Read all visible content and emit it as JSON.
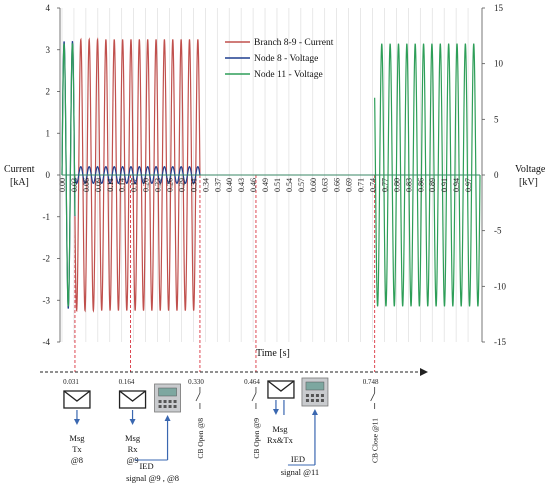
{
  "chart_data": {
    "type": "line",
    "xlabel": "Time [s]",
    "ylabel_left": [
      "Current",
      "[kA]"
    ],
    "ylabel_right": [
      "Voltage",
      "[kV]"
    ],
    "ylim_left": [
      -4,
      4
    ],
    "ylim_right": [
      -15,
      15
    ],
    "yticks_left": [
      "4",
      "3",
      "2",
      "1",
      "0",
      "-1",
      "-2",
      "-3",
      "-4"
    ],
    "yticks_right": [
      "15",
      "10",
      "5",
      "0",
      "-5",
      "-10",
      "-15"
    ],
    "xlim": [
      0,
      1
    ],
    "xticks": [
      "0.00",
      "0.03",
      "0.06",
      "0.09",
      "0.11",
      "0.14",
      "0.17",
      "0.20",
      "0.23",
      "0.26",
      "0.29",
      "0.31",
      "0.34",
      "0.37",
      "0.40",
      "0.43",
      "0.46",
      "0.49",
      "0.51",
      "0.54",
      "0.57",
      "0.60",
      "0.63",
      "0.66",
      "0.69",
      "0.71",
      "0.74",
      "0.77",
      "0.80",
      "0.83",
      "0.86",
      "0.89",
      "0.91",
      "0.94",
      "0.97"
    ],
    "grid": true,
    "legend_position": "top-center",
    "series": [
      {
        "name": "Branch 8-9 - Current",
        "color": "#c0504d",
        "axis": "left",
        "frequency_hz": 50,
        "segments": [
          {
            "t_start": 0.031,
            "t_end": 0.33,
            "amplitude": 3.25
          }
        ]
      },
      {
        "name": "Node 8 - Voltage",
        "color": "#1f3f8f",
        "axis": "left",
        "frequency_hz": 50,
        "segments": [
          {
            "t_start": 0.0,
            "t_end": 0.031,
            "amplitude": 3.2
          },
          {
            "t_start": 0.031,
            "t_end": 0.33,
            "amplitude": 0.2
          }
        ]
      },
      {
        "name": "Node 11 - Voltage",
        "color": "#2e9e58",
        "axis": "right",
        "frequency_hz": 50,
        "segments": [
          {
            "t_start": 0.0,
            "t_end": 0.031,
            "amplitude": 11.8
          },
          {
            "t_start": 0.748,
            "t_end": 1.0,
            "amplitude": 11.8
          }
        ]
      }
    ],
    "event_lines": [
      0.031,
      0.164,
      0.33,
      0.464,
      0.748
    ]
  },
  "timeline": {
    "events": [
      {
        "time": "0.031",
        "t": 0.031,
        "icon": "envelope-icon",
        "label": [
          "Msg",
          "Tx",
          "@8"
        ]
      },
      {
        "time": "0.164",
        "t": 0.164,
        "icon": "envelope-icon",
        "label": [
          "Msg",
          "Rx",
          "@9"
        ]
      },
      {
        "time": "0.330",
        "t": 0.33,
        "icon": "switch-icon",
        "label": [
          "CB Open @8"
        ]
      },
      {
        "time": "0.464",
        "t": 0.464,
        "icon": "switch-icon",
        "label": [
          "CB Open @9"
        ]
      },
      {
        "time": "0.748",
        "t": 0.748,
        "icon": "switch-icon",
        "label": [
          "CB Close @11"
        ]
      }
    ],
    "ied1": {
      "icon": "ied-device-icon",
      "label": [
        "IED",
        "signal @9 , @8"
      ]
    },
    "ied2": {
      "icon": "ied-device-icon",
      "msg_label": [
        "Msg",
        "Rx&Tx"
      ],
      "label": [
        "IED",
        "signal @11"
      ]
    }
  }
}
